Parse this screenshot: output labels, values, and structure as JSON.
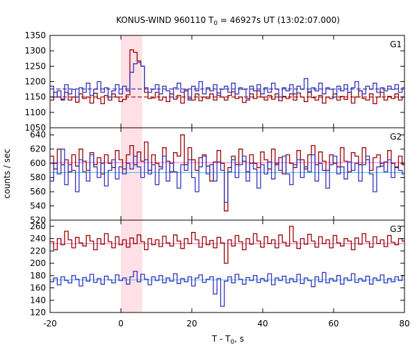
{
  "chart_data": {
    "type": "line",
    "title_main": "KONUS-WIND 960110 T",
    "title_sub": "0",
    "title_rest": " = 46927s UT (13:02:07.000)",
    "xlabel_main": "T - T",
    "xlabel_sub": "0",
    "xlabel_rest": ", s",
    "ylabel": "counts / sec",
    "xlim": [
      -20,
      80
    ],
    "x_ticks": [
      -20,
      0,
      20,
      40,
      60,
      80
    ],
    "x_tick_labels": [
      "-20",
      "0",
      "20",
      "40",
      "60",
      "80"
    ],
    "highlight_interval": [
      0,
      6
    ],
    "colors": {
      "red": "#990000",
      "blue": "#3333bb",
      "pink": "#ee66cc",
      "cyan": "#44bbee",
      "shade": "#ffe0e6"
    },
    "panels": [
      {
        "label": "G1",
        "ylim": [
          1050,
          1350
        ],
        "y_ticks": [
          1050,
          1100,
          1150,
          1200,
          1250,
          1300,
          1350
        ],
        "y_tick_labels": [
          "1050",
          "1100",
          "1150",
          "1200",
          "1250",
          "1300",
          "1350"
        ],
        "levels": [
          {
            "name": "red-bg",
            "value": 1150
          },
          {
            "name": "blue-bg",
            "value": 1176
          }
        ],
        "series": [
          {
            "color": "red",
            "x0": -20,
            "dx": 1.024,
            "values": [
              1140,
              1165,
              1150,
              1143,
              1165,
              1140,
              1150,
              1133,
              1160,
              1145,
              1150,
              1130,
              1162,
              1145,
              1128,
              1155,
              1140,
              1160,
              1150,
              1135,
              1142,
              1157,
              1303,
              1295,
              1267,
              1250,
              1165,
              1145,
              1147,
              1165,
              1140,
              1150,
              1135,
              1160,
              1143,
              1155,
              1130,
              1170,
              1145,
              1140,
              1160,
              1138,
              1150,
              1145,
              1160,
              1140,
              1163,
              1150,
              1140,
              1155,
              1167,
              1145,
              1150,
              1132,
              1140,
              1160,
              1145,
              1170,
              1150,
              1140,
              1155,
              1143,
              1160,
              1138,
              1152,
              1145,
              1160,
              1140,
              1163,
              1150,
              1135,
              1167,
              1148,
              1140,
              1155,
              1130,
              1150,
              1145,
              1160,
              1140,
              1152,
              1142,
              1165,
              1130,
              1150,
              1170,
              1145,
              1140,
              1160,
              1128,
              1150,
              1165,
              1140,
              1152,
              1145,
              1160,
              1140,
              1150
            ]
          },
          {
            "color": "blue",
            "x0": -20,
            "dx": 1.024,
            "values": [
              1185,
              1150,
              1170,
              1140,
              1190,
              1160,
              1175,
              1150,
              1180,
              1165,
              1195,
              1155,
              1175,
              1200,
              1165,
              1180,
              1150,
              1170,
              1190,
              1160,
              1185,
              1170,
              1230,
              1258,
              1262,
              1250,
              1180,
              1165,
              1175,
              1190,
              1160,
              1185,
              1170,
              1150,
              1180,
              1195,
              1165,
              1175,
              1140,
              1185,
              1170,
              1200,
              1160,
              1180,
              1170,
              1190,
              1155,
              1175,
              1185,
              1165,
              1195,
              1160,
              1180,
              1175,
              1145,
              1185,
              1170,
              1190,
              1160,
              1180,
              1165,
              1195,
              1175,
              1150,
              1180,
              1170,
              1190,
              1160,
              1185,
              1175,
              1210,
              1165,
              1180,
              1170,
              1195,
              1160,
              1180,
              1175,
              1150,
              1185,
              1170,
              1190,
              1165,
              1180,
              1200,
              1170,
              1160,
              1185,
              1175,
              1195,
              1165,
              1180,
              1170,
              1185,
              1175,
              1190,
              1165,
              1180
            ]
          }
        ]
      },
      {
        "label": "G2",
        "ylim": [
          520,
          650
        ],
        "y_ticks": [
          520,
          540,
          560,
          580,
          600,
          620,
          640
        ],
        "y_tick_labels": [
          "520",
          "540",
          "560",
          "580",
          "600",
          "620",
          "640"
        ],
        "levels": [
          {
            "name": "pink-bg",
            "value": 601
          },
          {
            "name": "cyan-bg",
            "value": 587
          }
        ],
        "series": [
          {
            "color": "red",
            "x0": -20,
            "dx": 1.024,
            "values": [
              610,
              592,
              620,
              598,
              605,
              588,
              612,
              596,
              620,
              603,
              590,
              615,
              598,
              608,
              585,
              612,
              600,
              594,
              618,
              605,
              592,
              612,
              625,
              598,
              616,
              603,
              630,
              590,
              612,
              600,
              595,
              622,
              603,
              588,
              615,
              610,
              640,
              598,
              622,
              605,
              590,
              608,
              612,
              596,
              575,
              602,
              618,
              600,
              533,
              594,
              610,
              598,
              620,
              603,
              588,
              612,
              600,
              594,
              616,
              605,
              592,
              620,
              598,
              608,
              585,
              612,
              600,
              594,
              618,
              605,
              592,
              612,
              625,
              598,
              616,
              603,
              590,
              612,
              600,
              595,
              622,
              603,
              588,
              615,
              610,
              598,
              622,
              605,
              590,
              608,
              612,
              596,
              602,
              618,
              600,
              594,
              610,
              598
            ]
          },
          {
            "color": "blue",
            "x0": -20,
            "dx": 1.024,
            "values": [
              575,
              600,
              585,
              620,
              570,
              598,
              590,
              560,
              605,
              588,
              575,
              612,
              595,
              580,
              600,
              568,
              590,
              605,
              578,
              595,
              585,
              600,
              592,
              610,
              595,
              580,
              605,
              585,
              598,
              570,
              592,
              610,
              575,
              600,
              588,
              565,
              598,
              590,
              605,
              580,
              560,
              595,
              610,
              585,
              598,
              575,
              602,
              590,
              545,
              588,
              605,
              580,
              598,
              610,
              575,
              600,
              592,
              565,
              598,
              585,
              602,
              578,
              600,
              590,
              610,
              585,
              570,
              598,
              605,
              580,
              595,
              588,
              612,
              575,
              600,
              590,
              565,
              598,
              610,
              585,
              595,
              578,
              602,
              590,
              600,
              575,
              598,
              610,
              585,
              560,
              595,
              600,
              588,
              605,
              580,
              595,
              590,
              585
            ]
          }
        ]
      },
      {
        "label": "G3",
        "ylim": [
          120,
          270
        ],
        "y_ticks": [
          120,
          140,
          160,
          180,
          200,
          220,
          240,
          260
        ],
        "y_tick_labels": [
          "120",
          "140",
          "160",
          "180",
          "200",
          "220",
          "240",
          "260"
        ],
        "levels": [
          {
            "name": "pink-bg",
            "value": 232
          },
          {
            "name": "cyan-bg",
            "value": 173
          }
        ],
        "series": [
          {
            "color": "red",
            "x0": -20,
            "dx": 1.024,
            "values": [
              235,
              222,
              240,
              230,
              252,
              238,
              225,
              242,
              233,
              228,
              245,
              236,
              222,
              240,
              231,
              248,
              235,
              225,
              243,
              230,
              238,
              226,
              241,
              232,
              246,
              235,
              222,
              240,
              230,
              238,
              227,
              244,
              233,
              228,
              246,
              236,
              224,
              240,
              232,
              250,
              238,
              226,
              243,
              230,
              237,
              225,
              242,
              233,
              200,
              238,
              228,
              245,
              235,
              222,
              240,
              231,
              248,
              236,
              226,
              243,
              232,
              238,
              225,
              246,
              234,
              228,
              260,
              235,
              224,
              240,
              231,
              247,
              236,
              226,
              243,
              232,
              238,
              225,
              245,
              233,
              228,
              240,
              236,
              222,
              241,
              231,
              248,
              235,
              226,
              243,
              232,
              238,
              227,
              245,
              234,
              230,
              240,
              236
            ]
          },
          {
            "color": "blue",
            "x0": -20,
            "dx": 1.024,
            "values": [
              170,
              176,
              165,
              178,
              172,
              168,
              180,
              174,
              163,
              177,
              171,
              182,
              169,
              175,
              166,
              179,
              173,
              168,
              181,
              172,
              176,
              166,
              178,
              187,
              170,
              182,
              174,
              165,
              178,
              172,
              180,
              168,
              176,
              171,
              183,
              167,
              175,
              170,
              178,
              163,
              176,
              181,
              169,
              174,
              178,
              150,
              175,
              130,
              171,
              178,
              168,
              182,
              174,
              166,
              177,
              172,
              180,
              169,
              175,
              171,
              183,
              165,
              176,
              172,
              179,
              168,
              175,
              170,
              182,
              167,
              176,
              172,
              162,
              178,
              170,
              185,
              168,
              175,
              171,
              180,
              166,
              176,
              172,
              183,
              169,
              175,
              171,
              179,
              166,
              176,
              172,
              181,
              168,
              175,
              170,
              178,
              172,
              180
            ]
          }
        ]
      }
    ]
  }
}
